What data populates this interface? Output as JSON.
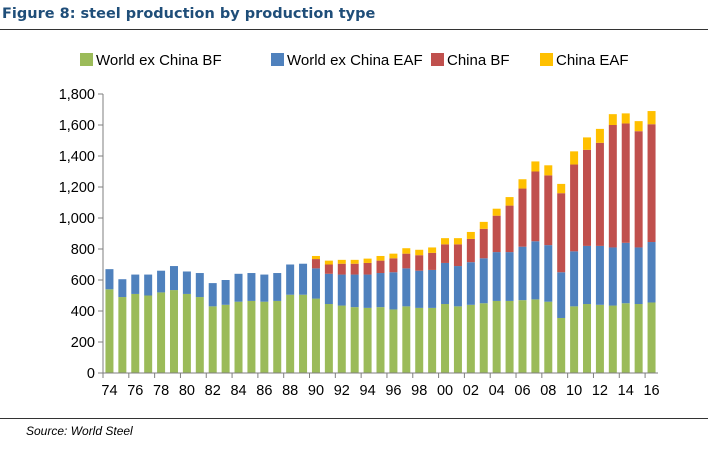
{
  "figure": {
    "title": "Figure 8: steel production by production type",
    "source": "Source: World Steel"
  },
  "chart_data": {
    "type": "bar",
    "stacked": true,
    "legend_position": "top",
    "grid": false,
    "ylim": [
      0,
      1800
    ],
    "yticks": [
      0,
      200,
      400,
      600,
      800,
      1000,
      1200,
      1400,
      1600,
      1800
    ],
    "ytick_labels": [
      "0",
      "200",
      "400",
      "600",
      "800",
      "1,000",
      "1,200",
      "1,400",
      "1,600",
      "1,800"
    ],
    "xtick_labels": [
      "74",
      "76",
      "78",
      "80",
      "82",
      "84",
      "86",
      "88",
      "90",
      "92",
      "94",
      "96",
      "98",
      "00",
      "02",
      "04",
      "06",
      "08",
      "10",
      "12",
      "14",
      "16"
    ],
    "categories": [
      "74",
      "75",
      "76",
      "77",
      "78",
      "79",
      "80",
      "81",
      "82",
      "83",
      "84",
      "85",
      "86",
      "87",
      "88",
      "89",
      "90",
      "91",
      "92",
      "93",
      "94",
      "95",
      "96",
      "97",
      "98",
      "99",
      "00",
      "01",
      "02",
      "03",
      "04",
      "05",
      "06",
      "07",
      "08",
      "09",
      "10",
      "11",
      "12",
      "13",
      "14",
      "15",
      "16"
    ],
    "series": [
      {
        "name": "World ex China BF",
        "color": "#9bbb59",
        "values": [
          540,
          490,
          510,
          500,
          520,
          535,
          510,
          490,
          430,
          440,
          460,
          465,
          460,
          465,
          505,
          505,
          480,
          445,
          435,
          425,
          420,
          425,
          410,
          430,
          420,
          420,
          445,
          430,
          440,
          450,
          465,
          465,
          470,
          475,
          460,
          355,
          430,
          445,
          440,
          435,
          450,
          445,
          455
        ]
      },
      {
        "name": "World ex China EAF",
        "color": "#4f81bd",
        "values": [
          130,
          115,
          125,
          135,
          140,
          155,
          145,
          155,
          150,
          160,
          180,
          180,
          175,
          180,
          195,
          200,
          195,
          195,
          200,
          210,
          215,
          220,
          240,
          245,
          240,
          245,
          265,
          260,
          275,
          290,
          315,
          315,
          345,
          375,
          365,
          295,
          355,
          375,
          380,
          375,
          390,
          365,
          390
        ]
      },
      {
        "name": "China BF",
        "color": "#c0504d",
        "values": [
          0,
          0,
          0,
          0,
          0,
          0,
          0,
          0,
          0,
          0,
          0,
          0,
          0,
          0,
          0,
          0,
          60,
          60,
          70,
          70,
          75,
          80,
          90,
          95,
          100,
          110,
          120,
          140,
          150,
          190,
          235,
          300,
          375,
          450,
          450,
          510,
          560,
          620,
          665,
          790,
          770,
          750,
          760
        ]
      },
      {
        "name": "China EAF",
        "color": "#ffc000",
        "values": [
          0,
          0,
          0,
          0,
          0,
          0,
          0,
          0,
          0,
          0,
          0,
          0,
          0,
          0,
          0,
          0,
          20,
          25,
          25,
          25,
          28,
          30,
          30,
          35,
          35,
          35,
          40,
          40,
          45,
          45,
          45,
          55,
          60,
          65,
          65,
          60,
          85,
          80,
          90,
          70,
          65,
          65,
          85
        ]
      }
    ]
  }
}
